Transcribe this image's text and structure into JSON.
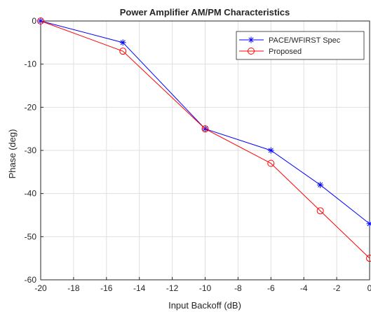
{
  "chart_data": {
    "type": "line",
    "title": "Power Amplifier AM/PM Characteristics",
    "xlabel": "Input Backoff (dB)",
    "ylabel": "Phase (deg)",
    "xlim": [
      -20,
      0
    ],
    "ylim": [
      -60,
      0
    ],
    "xticks": [
      "-20",
      "-18",
      "-16",
      "-14",
      "-12",
      "-10",
      "-8",
      "-6",
      "-4",
      "-2",
      "0"
    ],
    "yticks": [
      "0",
      "-10",
      "-20",
      "-30",
      "-40",
      "-50",
      "-60"
    ],
    "grid": true,
    "legend_position": "top-right",
    "series": [
      {
        "name": "PACE/WFIRST Spec",
        "color": "#0000ff",
        "marker": "asterisk",
        "x": [
          -20,
          -15,
          -10,
          -6,
          -3,
          0
        ],
        "y": [
          0,
          -5,
          -25,
          -30,
          -38,
          -47
        ]
      },
      {
        "name": "Proposed",
        "color": "#ff0000",
        "marker": "circle",
        "x": [
          -20,
          -15,
          -10,
          -6,
          -3,
          0
        ],
        "y": [
          0,
          -7,
          -25,
          -33,
          -44,
          -55
        ]
      }
    ]
  }
}
